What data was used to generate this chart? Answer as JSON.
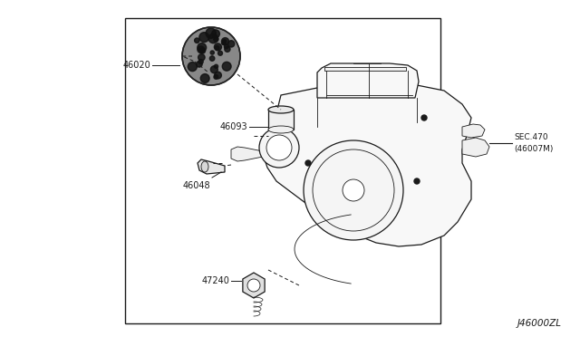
{
  "bg_color": "#ffffff",
  "border_color": "#000000",
  "line_color": "#1a1a1a",
  "text_color": "#1a1a1a",
  "fig_width": 6.4,
  "fig_height": 3.72,
  "dpi": 100,
  "border": [
    0.215,
    0.055,
    0.76,
    0.96
  ],
  "bottom_label": "J46000ZL",
  "label_46020": "46020",
  "label_46093": "46093",
  "label_46048": "46048",
  "label_47240": "47240",
  "sec_label": "SEC.470\n(46007M)"
}
